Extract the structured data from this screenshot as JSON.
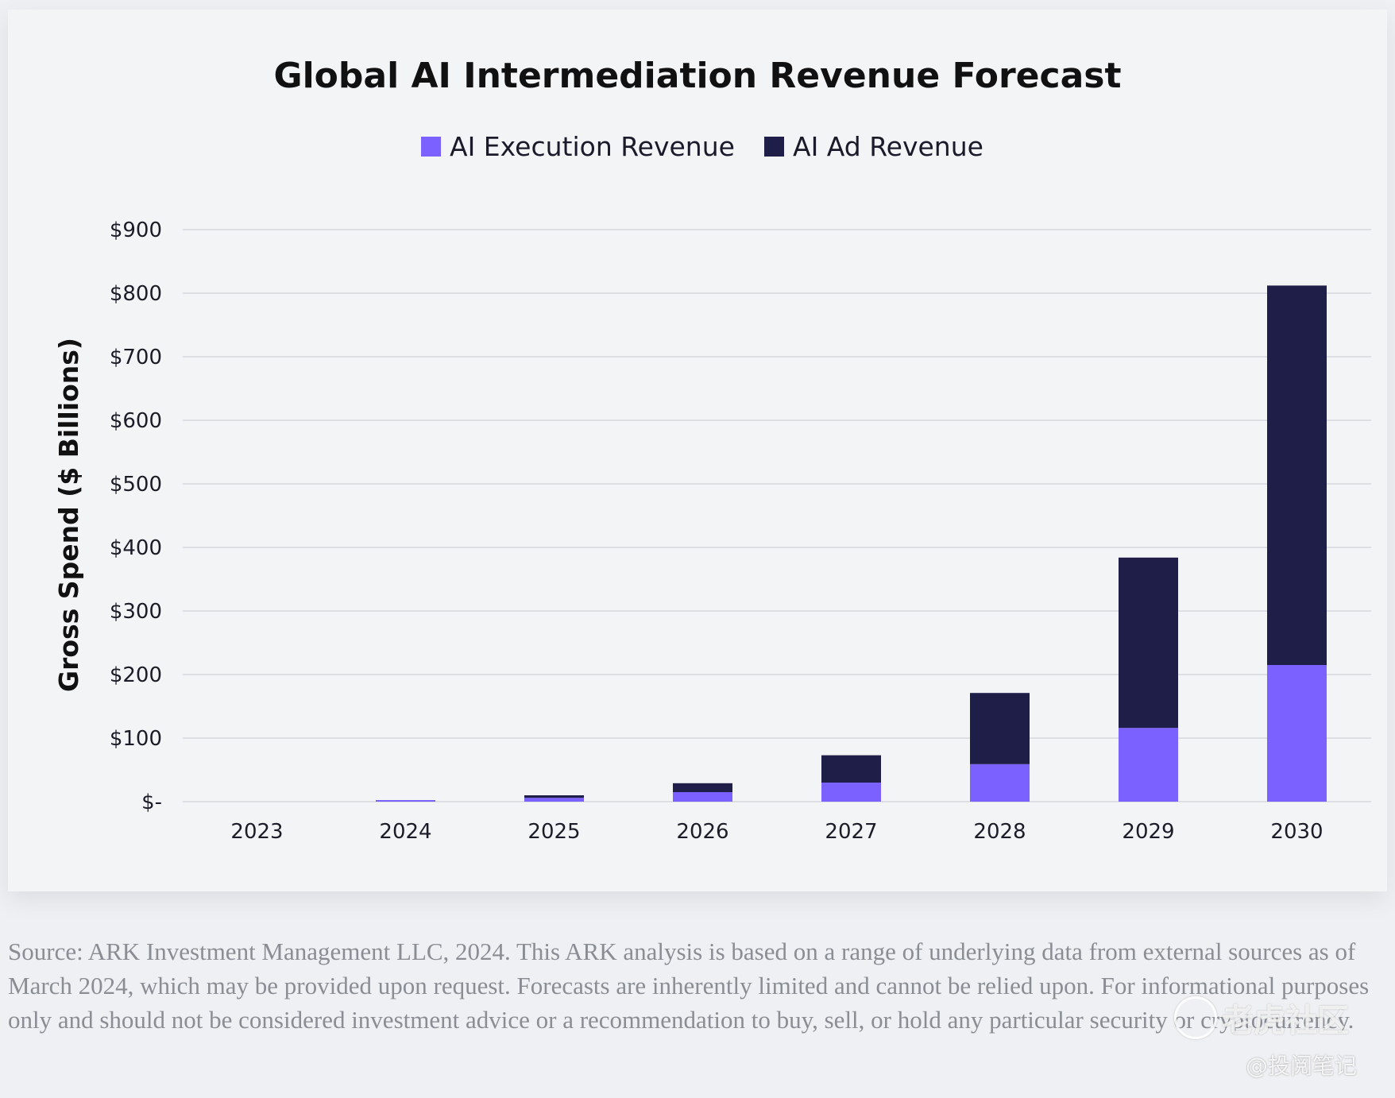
{
  "chart_data": {
    "type": "bar",
    "stacked": true,
    "title": "Global AI Intermediation Revenue Forecast",
    "ylabel": "Gross Spend ($ Billions)",
    "xlabel": "",
    "categories": [
      "2023",
      "2024",
      "2025",
      "2026",
      "2027",
      "2028",
      "2029",
      "2030"
    ],
    "series": [
      {
        "name": "AI Execution Revenue",
        "color": "#7b61ff",
        "values": [
          0,
          1,
          6,
          15,
          30,
          59,
          116,
          215
        ]
      },
      {
        "name": "AI Ad Revenue",
        "color": "#1e1e48",
        "values": [
          0,
          0,
          4,
          14,
          43,
          112,
          268,
          597
        ]
      }
    ],
    "ylim": [
      0,
      900
    ],
    "yticks": [
      0,
      100,
      200,
      300,
      400,
      500,
      600,
      700,
      800,
      900
    ],
    "ytick_labels": [
      "$-",
      "$100",
      "$200",
      "$300",
      "$400",
      "$500",
      "$600",
      "$700",
      "$800",
      "$900"
    ],
    "grid": true,
    "legend_position": "top-center"
  },
  "source_text": "Source: ARK Investment Management LLC, 2024. This ARK analysis is based on a range of underlying data from external sources as of March 2024, which may be provided upon request. Forecasts are inherently limited and cannot be relied upon. For informational purposes only and should not be considered investment advice or a recommendation to buy, sell, or hold any particular security or cryptocurrency.",
  "watermark": {
    "primary": "老虎社区",
    "secondary": "@投阅笔记"
  }
}
